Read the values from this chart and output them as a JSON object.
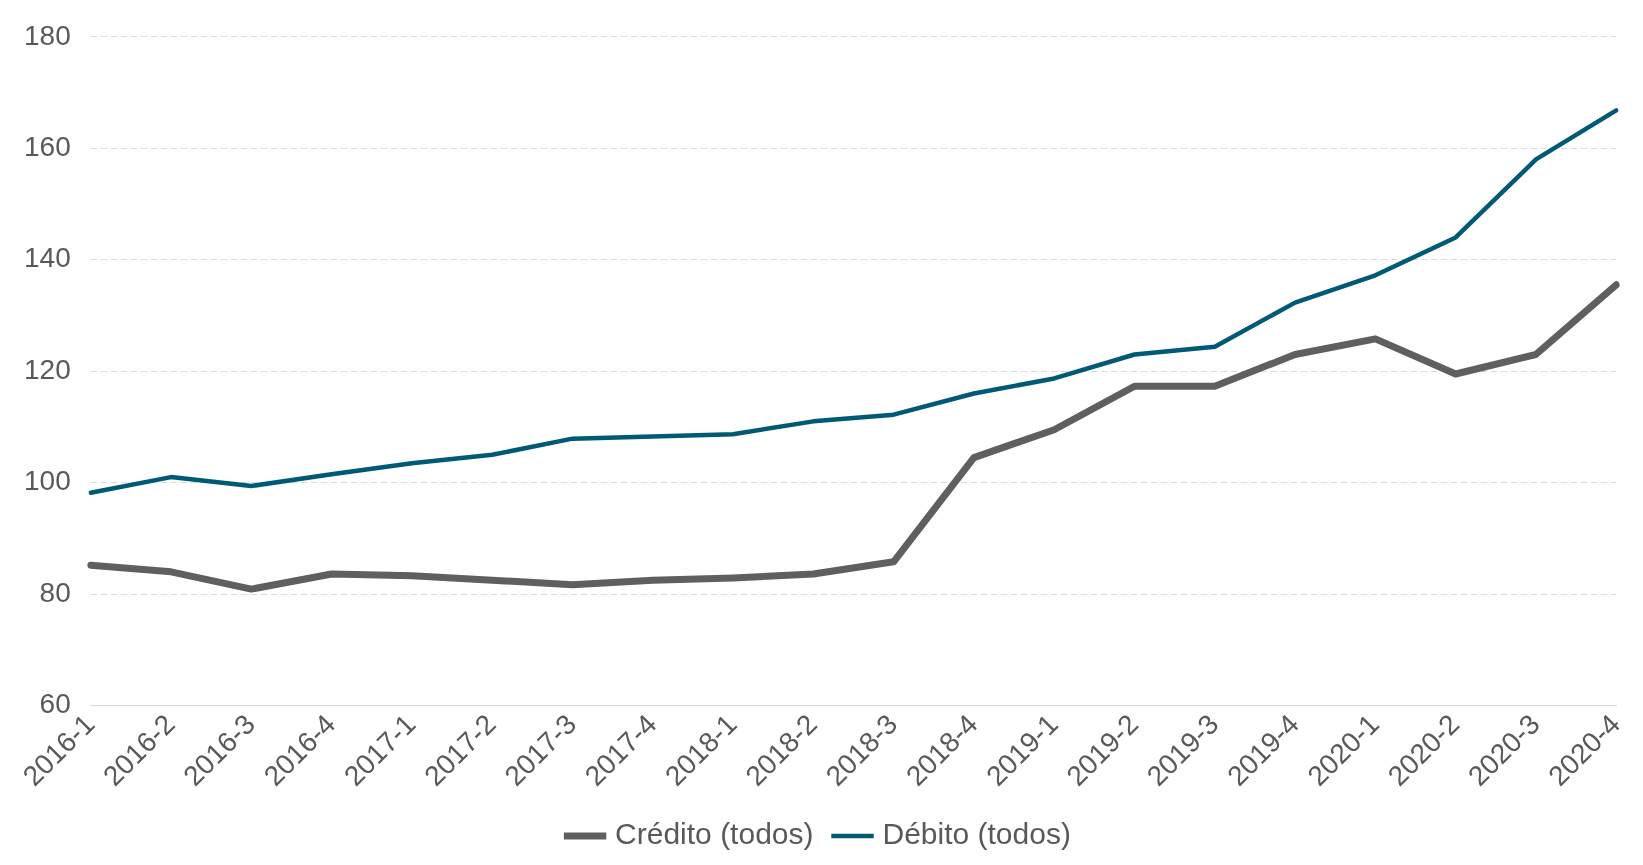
{
  "chart_data": {
    "type": "line",
    "categories": [
      "2016-1",
      "2016-2",
      "2016-3",
      "2016-4",
      "2017-1",
      "2017-2",
      "2017-3",
      "2017-4",
      "2018-1",
      "2018-2",
      "2018-3",
      "2018-4",
      "2019-1",
      "2019-2",
      "2019-3",
      "2019-4",
      "2020-1",
      "2020-2",
      "2020-3",
      "2020-4"
    ],
    "series": [
      {
        "name": "Crédito (todos)",
        "color": "#5f5f5f",
        "values": [
          85.2,
          84,
          80.9,
          83.6,
          83.3,
          82.5,
          81.7,
          82.5,
          82.9,
          83.6,
          85.8,
          104.5,
          109.5,
          117.3,
          117.3,
          123,
          125.8,
          119.5,
          123,
          135.5
        ]
      },
      {
        "name": "Débito (todos)",
        "color": "#005a75",
        "values": [
          98.2,
          101,
          99.4,
          101.5,
          103.5,
          105,
          107.9,
          108.3,
          108.7,
          111,
          112.2,
          116,
          118.7,
          123,
          124.4,
          132.3,
          137.2,
          144,
          158,
          166.8
        ]
      }
    ],
    "ylim": [
      60,
      180
    ],
    "yticks": [
      60,
      80,
      100,
      120,
      140,
      160,
      180
    ],
    "grid": "y",
    "legend": "bottom",
    "marker": "none",
    "line_style": "solid"
  }
}
